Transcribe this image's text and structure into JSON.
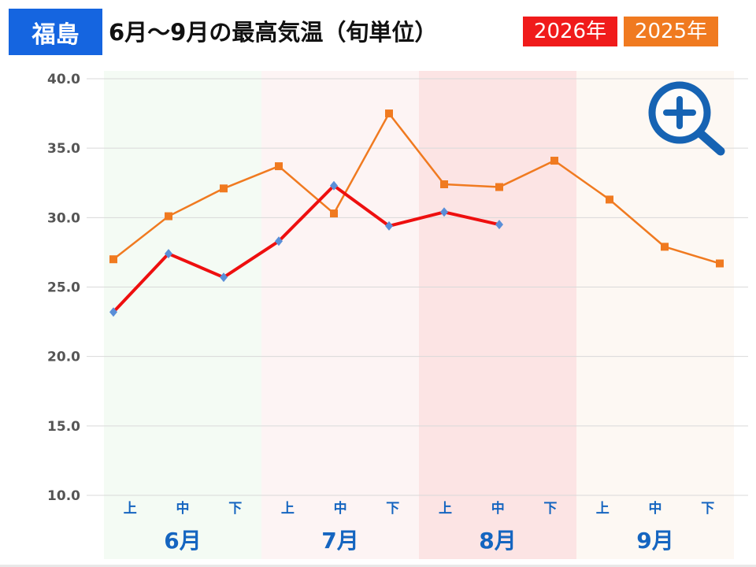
{
  "header": {
    "city": "福島",
    "title": "6月～9月の最高気温（旬単位）",
    "legend_2026": "2026年",
    "legend_2025": "2025年"
  },
  "colors": {
    "city_badge": "#1565e0",
    "series_2026_line": "#ee0f0f",
    "series_2026_marker": "#5a8fd8",
    "series_2025": "#f07a20",
    "month_label": "#1565c0",
    "band_june": "#f4fbf4",
    "band_july": "#fdf4f4",
    "band_august": "#fce4e4",
    "band_september": "#fdf8f3"
  },
  "icons": {
    "zoom": "zoom-in-magnifier-icon"
  },
  "chart_data": {
    "type": "line",
    "ylim": [
      10,
      40
    ],
    "yticks": [
      "10.0",
      "15.0",
      "20.0",
      "25.0",
      "30.0",
      "35.0",
      "40.0"
    ],
    "categories": [
      "上",
      "中",
      "下",
      "上",
      "中",
      "下",
      "上",
      "中",
      "下",
      "上",
      "中",
      "下"
    ],
    "months": [
      "6月",
      "7月",
      "8月",
      "9月"
    ],
    "grid": true,
    "series": [
      {
        "name": "2025年",
        "values": [
          27.0,
          30.1,
          32.1,
          33.7,
          30.3,
          37.5,
          32.4,
          32.2,
          34.1,
          31.3,
          27.9,
          26.7
        ]
      },
      {
        "name": "2026年",
        "values": [
          23.2,
          27.4,
          25.7,
          28.3,
          32.3,
          29.4,
          30.4,
          29.5,
          null,
          null,
          null,
          null
        ]
      }
    ]
  }
}
